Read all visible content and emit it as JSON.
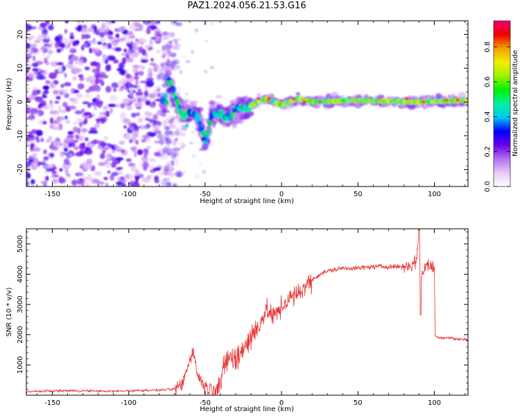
{
  "title": "PAZ1.2024.056.21.53.G16",
  "chart_data": [
    {
      "type": "heatmap",
      "xlabel": "Height of straight line (km)",
      "ylabel": "Frequency (Hz)",
      "xlim": [
        -167,
        122
      ],
      "ylim": [
        -25,
        24
      ],
      "x_ticks": [
        -150,
        -100,
        -50,
        0,
        50,
        100
      ],
      "y_ticks": [
        -20,
        -10,
        0,
        10,
        20
      ],
      "colorbar": {
        "label": "Normalized spectral amplitude",
        "range": [
          0,
          0.95
        ],
        "ticks": [
          0.0,
          0.2,
          0.4,
          0.6,
          0.8
        ],
        "colormap": [
          "#ffffff",
          "#e8c8f8",
          "#b070f0",
          "#6a00e8",
          "#0000ff",
          "#00c8f0",
          "#00f0a0",
          "#00f000",
          "#a0f000",
          "#f0f000",
          "#f0a000",
          "#f00000",
          "#f00070"
        ]
      },
      "ridge": [
        {
          "x": -75,
          "f": 8
        },
        {
          "x": -70,
          "f": 2
        },
        {
          "x": -65,
          "f": -4
        },
        {
          "x": -60,
          "f": -3
        },
        {
          "x": -55,
          "f": -4
        },
        {
          "x": -50,
          "f": -12
        },
        {
          "x": -45,
          "f": -3
        },
        {
          "x": -40,
          "f": -3
        },
        {
          "x": -35,
          "f": -5
        },
        {
          "x": -30,
          "f": -2
        },
        {
          "x": -20,
          "f": -1
        },
        {
          "x": -10,
          "f": 1
        },
        {
          "x": 0,
          "f": -1
        },
        {
          "x": 10,
          "f": 1
        },
        {
          "x": 20,
          "f": 0
        },
        {
          "x": 50,
          "f": 0.5
        },
        {
          "x": 90,
          "f": 0
        },
        {
          "x": 122,
          "f": 0.5
        }
      ],
      "noise_region": [
        -167,
        -75
      ]
    },
    {
      "type": "line",
      "xlabel": "Height of straight line (km)",
      "ylabel": "SNR (10 * v/v)",
      "xlim": [
        -167,
        122
      ],
      "ylim": [
        0,
        5500
      ],
      "x_ticks": [
        -150,
        -100,
        -50,
        0,
        50,
        100
      ],
      "y_ticks": [
        1000,
        2000,
        3000,
        4000,
        5000
      ],
      "color": "#e83030",
      "series": [
        {
          "values": [
            [
              -167,
              120
            ],
            [
              -140,
              150
            ],
            [
              -110,
              130
            ],
            [
              -90,
              160
            ],
            [
              -80,
              170
            ],
            [
              -70,
              200
            ],
            [
              -65,
              350
            ],
            [
              -60,
              1200
            ],
            [
              -58,
              1500
            ],
            [
              -55,
              700
            ],
            [
              -52,
              400
            ],
            [
              -48,
              200
            ],
            [
              -45,
              250
            ],
            [
              -40,
              400
            ],
            [
              -35,
              1300
            ],
            [
              -30,
              1100
            ],
            [
              -25,
              1600
            ],
            [
              -20,
              1900
            ],
            [
              -15,
              2300
            ],
            [
              -10,
              2800
            ],
            [
              -5,
              2600
            ],
            [
              0,
              2900
            ],
            [
              5,
              3200
            ],
            [
              10,
              3300
            ],
            [
              15,
              3600
            ],
            [
              20,
              3800
            ],
            [
              25,
              4000
            ],
            [
              30,
              4100
            ],
            [
              35,
              4150
            ],
            [
              40,
              4200
            ],
            [
              50,
              4200
            ],
            [
              60,
              4250
            ],
            [
              70,
              4250
            ],
            [
              80,
              4250
            ],
            [
              85,
              4300
            ],
            [
              88,
              4400
            ],
            [
              90,
              5500
            ],
            [
              91,
              3800
            ],
            [
              94,
              4300
            ],
            [
              98,
              4250
            ],
            [
              100,
              4200
            ],
            [
              100.5,
              1950
            ],
            [
              105,
              1900
            ],
            [
              110,
              1900
            ],
            [
              115,
              1850
            ],
            [
              122,
              1850
            ]
          ]
        }
      ]
    }
  ]
}
